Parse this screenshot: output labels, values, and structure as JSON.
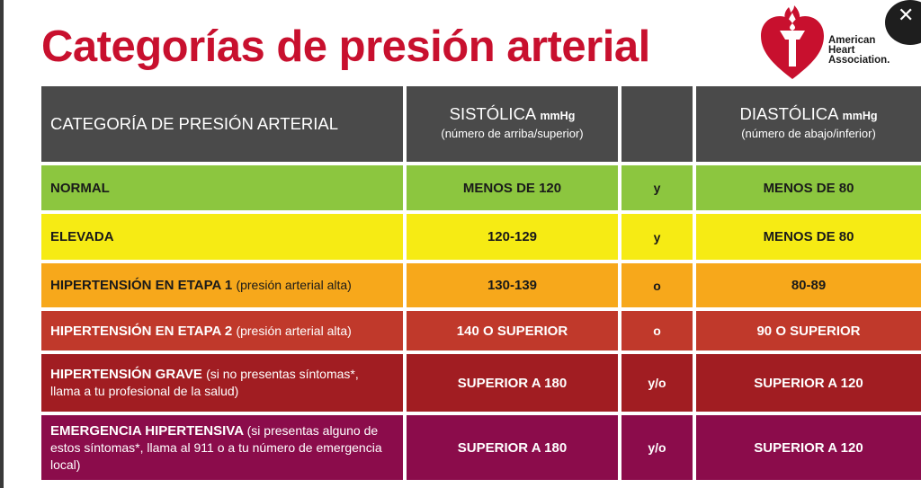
{
  "title": "Categorías de presión arterial",
  "logo": {
    "line1": "American",
    "line2": "Heart",
    "line3": "Association."
  },
  "colors": {
    "brand_red": "#c8102e",
    "header": "#4a4a4a",
    "normal": "#8cc63f",
    "elevada": "#f6eb14",
    "etapa1": "#f7a81b",
    "etapa2": "#c0392b",
    "grave": "#a11d22",
    "emergencia": "#8b0c4b"
  },
  "table": {
    "header": {
      "category": "CATEGORÍA DE PRESIÓN ARTERIAL",
      "systolic_main": "SISTÓLICA",
      "systolic_unit": "mmHg",
      "systolic_sub": "(número de arriba/superior)",
      "diastolic_main": "DIASTÓLICA",
      "diastolic_unit": "mmHg",
      "diastolic_sub": "(número de abajo/inferior)"
    },
    "rows": [
      {
        "category": "NORMAL",
        "note": "",
        "systolic": "MENOS DE 120",
        "conj": "y",
        "diastolic": "MENOS DE 80"
      },
      {
        "category": "ELEVADA",
        "note": "",
        "systolic": "120-129",
        "conj": "y",
        "diastolic": "MENOS DE 80"
      },
      {
        "category": "HIPERTENSIÓN EN ETAPA 1",
        "note": "(presión arterial alta)",
        "systolic": "130-139",
        "conj": "o",
        "diastolic": "80-89"
      },
      {
        "category": "HIPERTENSIÓN EN ETAPA 2",
        "note": "(presión arterial alta)",
        "systolic": "140 O SUPERIOR",
        "conj": "o",
        "diastolic": "90 O SUPERIOR"
      },
      {
        "category": "HIPERTENSIÓN GRAVE",
        "note": "(si no presentas síntomas*, llama a tu profesional de la salud)",
        "systolic": "SUPERIOR A 180",
        "conj": "y/o",
        "diastolic": "SUPERIOR A 120"
      },
      {
        "category": "EMERGENCIA HIPERTENSIVA",
        "note": "(si presentas alguno de estos síntomas*, llama al 911 o a tu número de emergencia local)",
        "systolic": "SUPERIOR A 180",
        "conj": "y/o",
        "diastolic": "SUPERIOR A 120"
      }
    ]
  },
  "close_icon": "close-icon"
}
